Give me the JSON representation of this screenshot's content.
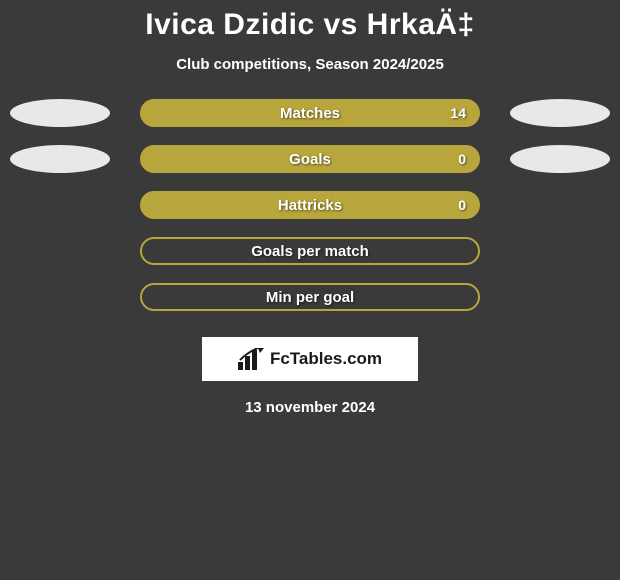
{
  "header": {
    "title": "Ivica Dzidic vs HrkaÄ‡",
    "subtitle": "Club competitions, Season 2024/2025"
  },
  "chart": {
    "type": "bar",
    "bar_border_color": "#b7a63c",
    "bar_fill_color": "#b7a63c",
    "bar_empty_fill": "transparent",
    "ellipse_color": "#e8e8e8",
    "label_color": "#ffffff",
    "label_fontsize": 15,
    "value_fontsize": 14,
    "rows": [
      {
        "label": "Matches",
        "value": "14",
        "filled": true,
        "show_left_ellipse": true,
        "show_right_ellipse": true
      },
      {
        "label": "Goals",
        "value": "0",
        "filled": true,
        "show_left_ellipse": true,
        "show_right_ellipse": true
      },
      {
        "label": "Hattricks",
        "value": "0",
        "filled": true,
        "show_left_ellipse": false,
        "show_right_ellipse": false
      },
      {
        "label": "Goals per match",
        "value": "",
        "filled": false,
        "show_left_ellipse": false,
        "show_right_ellipse": false
      },
      {
        "label": "Min per goal",
        "value": "",
        "filled": false,
        "show_left_ellipse": false,
        "show_right_ellipse": false
      }
    ]
  },
  "footer": {
    "brand": "FcTables.com",
    "date": "13 november 2024"
  },
  "colors": {
    "background": "#3a3a3a",
    "text": "#ffffff",
    "badge_bg": "#ffffff",
    "badge_text": "#1a1a1a"
  }
}
